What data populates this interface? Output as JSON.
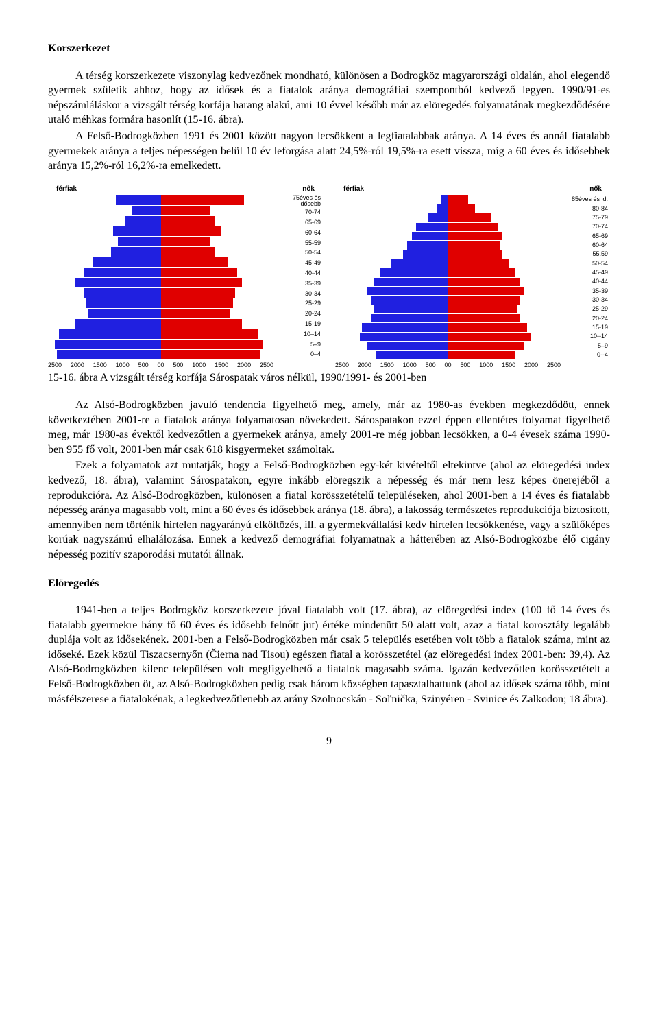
{
  "section1": {
    "title": "Korszerkezet",
    "p1": "A térség korszerkezete viszonylag kedvezőnek mondható, különösen a Bodrogköz magyarországi oldalán, ahol elegendő gyermek születik ahhoz, hogy az idősek és a fiatalok aránya demográfiai szempontból kedvező legyen. 1990/91-es népszámláláskor a vizsgált térség korfája harang alakú, ami 10 évvel később már az elöregedés folyamatának megkezdődésére utaló méhkas formára hasonlít (15-16. ábra).",
    "p2": "A Felső-Bodrogközben 1991 és 2001 között nagyon lecsökkent a legfiatalabbak aránya. A 14 éves és annál fiatalabb gyermekek aránya a teljes népességen belül 10 év leforgása alatt 24,5%-ról 19,5%-ra esett vissza, míg a 60 éves és idősebbek aránya 15,2%-ról 16,2%-ra emelkedett."
  },
  "charts": {
    "left": {
      "male_label": "férfiak",
      "female_label": "nők",
      "age_labels": [
        "75éves és idősebb",
        "70-74",
        "65-69",
        "60-64",
        "55-59",
        "50-54",
        "45-49",
        "40-44",
        "35-39",
        "30-34",
        "25-29",
        "20-24",
        "15-19",
        "10–14",
        "5–9",
        "0–4"
      ],
      "male_values": [
        1000,
        650,
        800,
        1050,
        950,
        1100,
        1500,
        1700,
        1900,
        1700,
        1650,
        1600,
        1900,
        2250,
        2350,
        2300
      ],
      "female_values": [
        1850,
        1100,
        1200,
        1350,
        1100,
        1200,
        1500,
        1700,
        1800,
        1650,
        1600,
        1550,
        1800,
        2150,
        2250,
        2200
      ],
      "x_max": 2500,
      "x_ticks": [
        "2500",
        "2000",
        "1500",
        "1000",
        "500",
        "0"
      ],
      "colors": {
        "male": "#2020e0",
        "female": "#e00000",
        "bg": "#ffffff"
      }
    },
    "right": {
      "male_label": "férfiak",
      "female_label": "nők",
      "age_labels": [
        "85éves és id.",
        "80-84",
        "75-79",
        "70-74",
        "65-69",
        "60-64",
        "55.59",
        "50-54",
        "45-49",
        "40-44",
        "35-39",
        "30-34",
        "25-29",
        "20-24",
        "15-19",
        "10--14",
        "5–9",
        "0--4"
      ],
      "male_values": [
        150,
        250,
        450,
        700,
        800,
        900,
        1000,
        1250,
        1500,
        1650,
        1800,
        1700,
        1650,
        1700,
        1900,
        1950,
        1800,
        1600
      ],
      "female_values": [
        450,
        600,
        950,
        1100,
        1200,
        1150,
        1200,
        1350,
        1500,
        1600,
        1700,
        1600,
        1550,
        1600,
        1750,
        1850,
        1700,
        1500
      ],
      "x_max": 2500,
      "x_ticks": [
        "2500",
        "2000",
        "1500",
        "1000",
        "500",
        "0"
      ],
      "colors": {
        "male": "#2020e0",
        "female": "#e00000",
        "bg": "#ffffff"
      }
    },
    "caption": "15-16. ábra  A vizsgált térség korfája Sárospatak város nélkül, 1990/1991- és 2001-ben"
  },
  "section2": {
    "p1": "Az Alsó-Bodrogközben javuló tendencia figyelhető meg, amely, már az 1980-as években megkezdődött, ennek következtében 2001-re a fiatalok aránya folyamatosan növekedett. Sárospatakon ezzel éppen ellentétes folyamat figyelhető meg, már 1980-as évektől kedvezőtlen a gyermekek aránya, amely 2001-re még jobban lecsökken, a 0-4 évesek száma 1990-ben 955 fő volt, 2001-ben már csak 618 kisgyermeket számoltak.",
    "p2": "Ezek a folyamatok azt mutatják, hogy a Felső-Bodrogközben egy-két kivételtől eltekintve (ahol az elöregedési index kedvező, 18. ábra), valamint Sárospatakon, egyre inkább elöregszik a népesség és már nem lesz képes önerejéből a reprodukcióra. Az Alsó-Bodrogközben, különösen a fiatal korösszetételű településeken, ahol 2001-ben a 14 éves és fiatalabb népesség aránya magasabb volt, mint a 60 éves és idősebbek aránya (18. ábra), a lakosság természetes reprodukciója biztosított, amennyiben nem történik hirtelen nagyarányú elköltözés, ill. a gyermekvállalási kedv hirtelen lecsökkenése, vagy a szülőképes korúak nagyszámú elhalálozása. Ennek a kedvező demográfiai folyamatnak a hátterében az Alsó-Bodrogközbe élő cigány népesség pozitív szaporodási mutatói állnak."
  },
  "section3": {
    "title": "Elöregedés",
    "p1": "1941-ben a teljes Bodrogköz korszerkezete jóval fiatalabb volt (17. ábra), az elöregedési index (100 fő 14 éves és fiatalabb gyermekre hány fő 60 éves és idősebb felnőtt jut) értéke mindenütt 50 alatt volt, azaz a fiatal korosztály legalább duplája volt az idősekének. 2001-ben a Felső-Bodrogközben már csak 5 település esetében volt több a fiatalok száma, mint az időseké. Ezek közül Tiszacsernyőn (Čierna nad Tisou) egészen fiatal a korösszetétel (az elöregedési index 2001-ben: 39,4). Az Alsó-Bodrogközben kilenc településen volt megfigyelhető a fiatalok magasabb száma. Igazán kedvezőtlen korösszetételt a Felső-Bodrogközben öt, az Alsó-Bodrogközben pedig csak három községben tapasztalhattunk (ahol az idősek száma több, mint másfélszerese a fiatalokénak, a legkedvezőtlenebb az arány Szolnocskán - Soľnička, Szinyéren - Svinice és Zalkodon; 18 ábra)."
  },
  "page_number": "9"
}
